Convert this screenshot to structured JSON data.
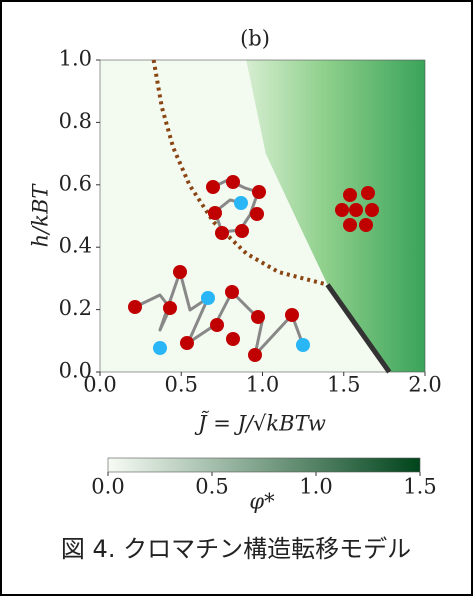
{
  "chart_data": {
    "type": "phase-diagram",
    "panel_label": "(b)",
    "xlabel": "J̃ = J/√kBTw",
    "ylabel": "h/kBT",
    "xlim": [
      0,
      2
    ],
    "ylim": [
      0,
      1
    ],
    "xticks": [
      {
        "value": 0,
        "label": "0.0"
      },
      {
        "value": 0.5,
        "label": "0.5"
      },
      {
        "value": 1,
        "label": "1.0"
      },
      {
        "value": 1.5,
        "label": "1.5"
      },
      {
        "value": 2,
        "label": "2.0"
      }
    ],
    "yticks": [
      {
        "value": 0,
        "label": "0.0"
      },
      {
        "value": 0.2,
        "label": "0.2"
      },
      {
        "value": 0.4,
        "label": "0.4"
      },
      {
        "value": 0.6,
        "label": "0.6"
      },
      {
        "value": 0.8,
        "label": "0.8"
      },
      {
        "value": 1,
        "label": "1.0"
      }
    ],
    "series": [
      {
        "color": "#8b4513",
        "style": "dotted",
        "x": [
          0.33,
          0.38,
          0.45,
          0.55,
          0.7,
          0.9,
          1.1,
          1.4
        ],
        "values": [
          1.0,
          0.85,
          0.72,
          0.6,
          0.48,
          0.38,
          0.32,
          0.28
        ]
      },
      {
        "color": "#333333",
        "style": "solid",
        "x": [
          1.4,
          1.78
        ],
        "values": [
          0.28,
          0.0
        ]
      }
    ],
    "colorbar": {
      "label": "φ*",
      "lim": [
        0,
        1.5
      ],
      "colors": [
        "#f7fcf5",
        "#00441b"
      ],
      "ticks": [
        {
          "value": 0,
          "label": "0.0"
        },
        {
          "value": 0.5,
          "label": "0.5"
        },
        {
          "value": 1,
          "label": "1.0"
        },
        {
          "value": 1.5,
          "label": "1.5"
        }
      ]
    },
    "caption": "図 4. クロマチン構造転移モデル"
  }
}
